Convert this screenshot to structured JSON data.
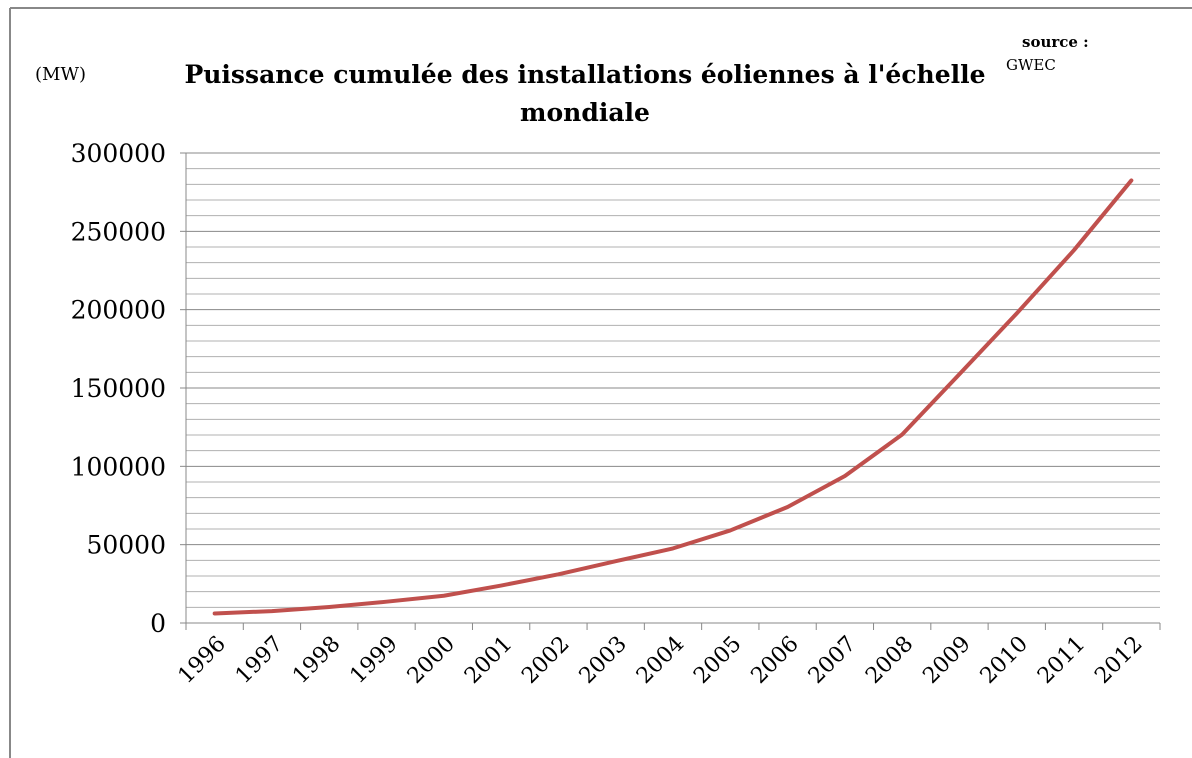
{
  "chart_data": {
    "type": "line",
    "title": [
      "Puissance cumulée des installations éoliennes à l'échelle",
      "mondiale"
    ],
    "y_label": "(MW)",
    "annotation": [
      "source :",
      "GWEC"
    ],
    "categories": [
      "1996",
      "1997",
      "1998",
      "1999",
      "2000",
      "2001",
      "2002",
      "2003",
      "2004",
      "2005",
      "2006",
      "2007",
      "2008",
      "2009",
      "2010",
      "2011",
      "2012"
    ],
    "series": [
      {
        "name": "Puissance cumulée",
        "color": "#c0504d",
        "values": [
          6100,
          7600,
          10200,
          13600,
          17400,
          23900,
          31100,
          39431,
          47620,
          59091,
          74052,
          93820,
          120291,
          158864,
          197637,
          238035,
          282482
        ]
      }
    ],
    "ylim": [
      0,
      300000
    ],
    "yticks": [
      0,
      50000,
      100000,
      150000,
      200000,
      250000,
      300000
    ],
    "minor_yticks": [
      10000,
      20000,
      30000,
      40000,
      60000,
      70000,
      80000,
      90000,
      110000,
      120000,
      130000,
      140000,
      160000,
      170000,
      180000,
      190000,
      210000,
      220000,
      230000,
      240000,
      260000,
      270000,
      280000,
      290000
    ],
    "grid": true,
    "legend": false
  }
}
